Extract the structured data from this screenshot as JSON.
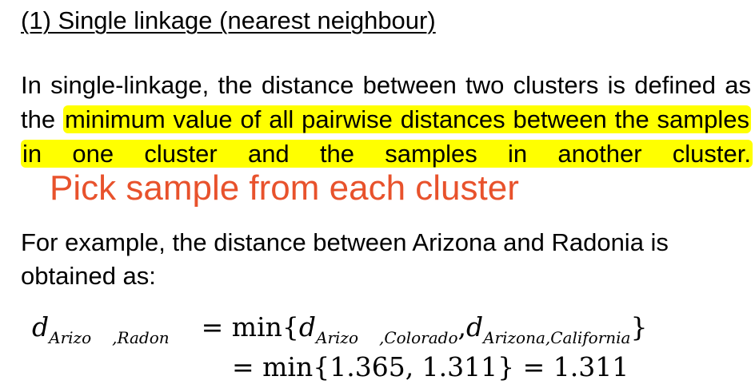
{
  "heading": "(1) Single linkage (nearest neighbour)",
  "paragraph1": {
    "before": "In single-linkage, the distance between two clusters is defined as the ",
    "highlight": "minimum value of all pairwise distances between the samples in one cluster and the samples in another cluster.",
    "annotation": "Pick sample from each cluster"
  },
  "paragraph2": "For example, the distance between Arizona and Radonia is obtained as:",
  "equation": {
    "lhs_symbol": "d",
    "lhs_sub_a": "Arizo",
    "lhs_sub_b": ",Radon",
    "equals": "=",
    "min": "min",
    "open_brace": "{",
    "term1_symbol": "d",
    "term1_sub_a": "Arizo",
    "term1_sub_b": ",Colorado",
    "comma": ",",
    "term2_symbol": "d",
    "term2_sub": "Arizona,California",
    "close_brace": "}",
    "line2": "= min{1.365, 1.311} = 1.311"
  },
  "colors": {
    "highlight": "#ffff00",
    "annotation": "#e8522c"
  }
}
